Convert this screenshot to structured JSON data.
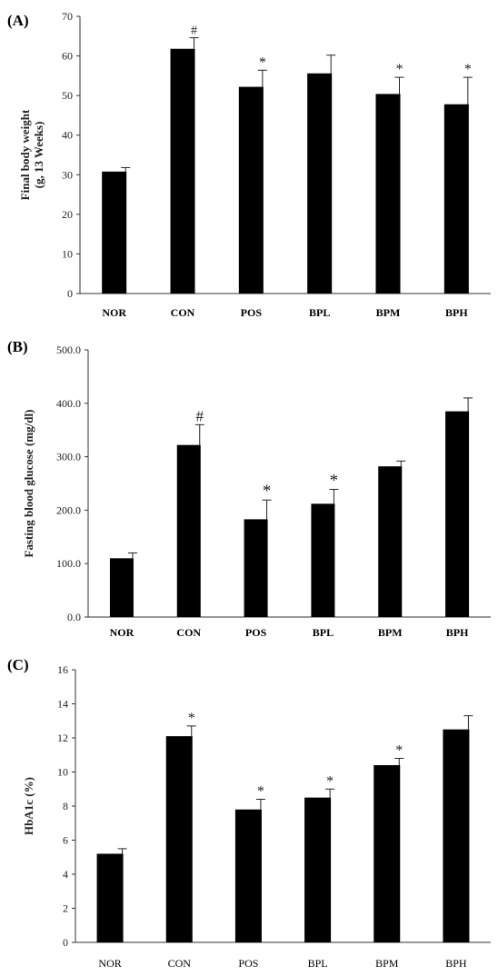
{
  "chart_data": [
    {
      "type": "bar",
      "panel_label": "(A)",
      "ylabel": "Final body weight\n(g, 13 Weeks)",
      "categories": [
        "NOR",
        "CON",
        "POS",
        "BPL",
        "BPM",
        "BPH"
      ],
      "values": [
        30.8,
        61.8,
        52.2,
        55.6,
        50.4,
        47.8
      ],
      "errors": [
        1.0,
        2.8,
        4.2,
        4.6,
        4.2,
        6.8
      ],
      "annotations": [
        "",
        "#",
        "*",
        "",
        "*",
        "*"
      ],
      "ylim": [
        0,
        70
      ],
      "yticks": [
        "0",
        "10",
        "20",
        "30",
        "40",
        "50",
        "60",
        "70"
      ],
      "bold_categories": true
    },
    {
      "type": "bar",
      "panel_label": "(B)",
      "ylabel": "Fasting blood glucose (mg/dl)",
      "categories": [
        "NOR",
        "CON",
        "POS",
        "BPL",
        "BPM",
        "BPH"
      ],
      "values": [
        110,
        322,
        183,
        212,
        282,
        385
      ],
      "errors": [
        10,
        38,
        36,
        27,
        10,
        25
      ],
      "annotations": [
        "",
        "#",
        "*",
        "*",
        "",
        ""
      ],
      "ylim": [
        0,
        500
      ],
      "yticks": [
        "0.0",
        "100.0",
        "200.0",
        "300.0",
        "400.0",
        "500.0"
      ],
      "bold_categories": true
    },
    {
      "type": "bar",
      "panel_label": "(C)",
      "ylabel": "HbA1c (%)",
      "categories": [
        "NOR",
        "CON",
        "POS",
        "BPL",
        "BPM",
        "BPH"
      ],
      "values": [
        5.2,
        12.1,
        7.8,
        8.5,
        10.4,
        12.5
      ],
      "errors": [
        0.3,
        0.6,
        0.6,
        0.5,
        0.4,
        0.8
      ],
      "annotations": [
        "",
        "*",
        "*",
        "*",
        "*",
        ""
      ],
      "ylim": [
        0,
        16
      ],
      "yticks": [
        "0",
        "2",
        "4",
        "6",
        "8",
        "10",
        "12",
        "14",
        "16"
      ],
      "bold_categories": false
    }
  ]
}
